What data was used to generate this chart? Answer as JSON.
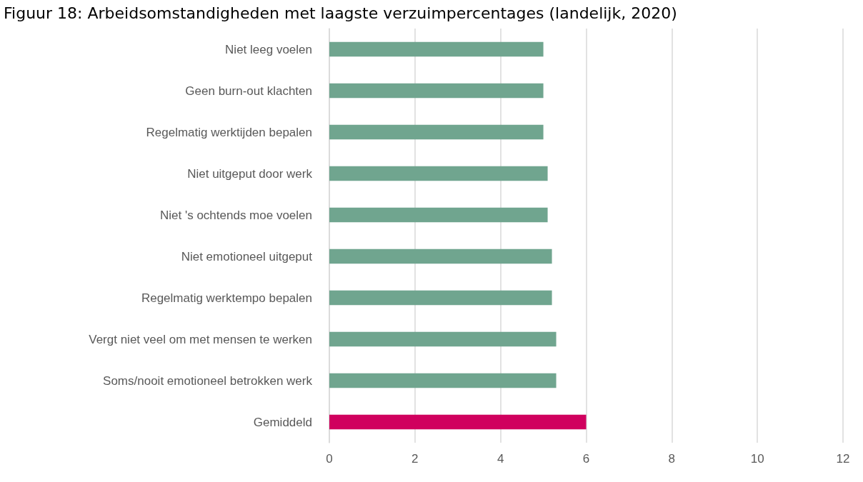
{
  "chart_data": {
    "type": "bar",
    "orientation": "horizontal",
    "title": "Figuur 18: Arbeidsomstandigheden met laagste verzuimpercentages (landelijk, 2020)",
    "categories": [
      "Niet leeg voelen",
      "Geen burn-out klachten",
      "Regelmatig werktijden bepalen",
      "Niet uitgeput door werk",
      "Niet 's ochtends moe voelen",
      "Niet emotioneel uitgeput",
      "Regelmatig werktempo bepalen",
      "Vergt niet veel om met mensen te werken",
      "Soms/nooit emotioneel betrokken werk",
      "Gemiddeld"
    ],
    "values": [
      5.0,
      5.0,
      5.0,
      5.1,
      5.1,
      5.2,
      5.2,
      5.3,
      5.3,
      6.0
    ],
    "colors": [
      "#70a58f",
      "#70a58f",
      "#70a58f",
      "#70a58f",
      "#70a58f",
      "#70a58f",
      "#70a58f",
      "#70a58f",
      "#70a58f",
      "#d0005e"
    ],
    "xlim": [
      0,
      12
    ],
    "xticks": [
      0,
      2,
      4,
      6,
      8,
      10,
      12
    ],
    "grid": "x"
  }
}
